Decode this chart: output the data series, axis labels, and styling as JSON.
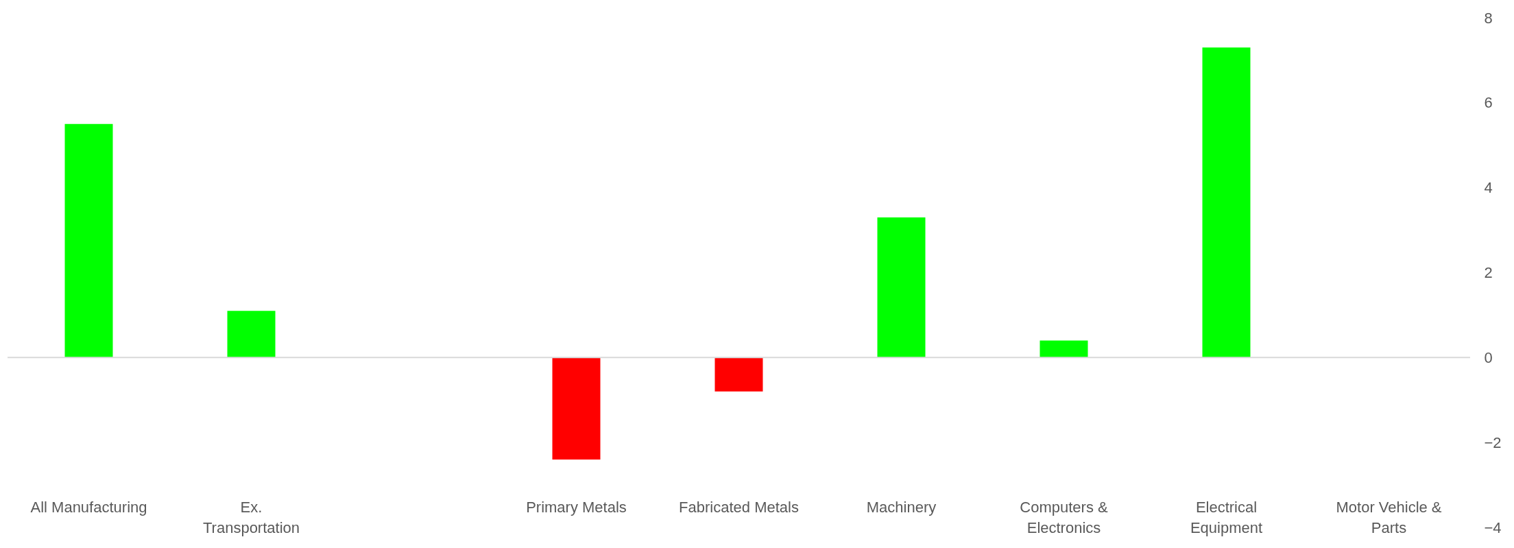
{
  "chart_data": {
    "type": "bar",
    "categories": [
      "All Manufacturing",
      "Ex. Transportation",
      null,
      "Primary Metals",
      "Fabricated Metals",
      "Machinery",
      "Computers & Electronics",
      "Electrical Equipment",
      "Motor Vehicle & Parts"
    ],
    "values": [
      5.5,
      1.1,
      null,
      -2.4,
      -0.8,
      3.3,
      0.4,
      7.3,
      0
    ],
    "colors": [
      "#00ff00",
      "#00ff00",
      "#00ff00",
      "#ff0000",
      "#ff0000",
      "#00ff00",
      "#00ff00",
      "#00ff00",
      "#00ff00"
    ],
    "ylim": [
      -4,
      8
    ],
    "yticks": [
      -4,
      -2,
      0,
      2,
      4,
      6,
      8
    ]
  }
}
